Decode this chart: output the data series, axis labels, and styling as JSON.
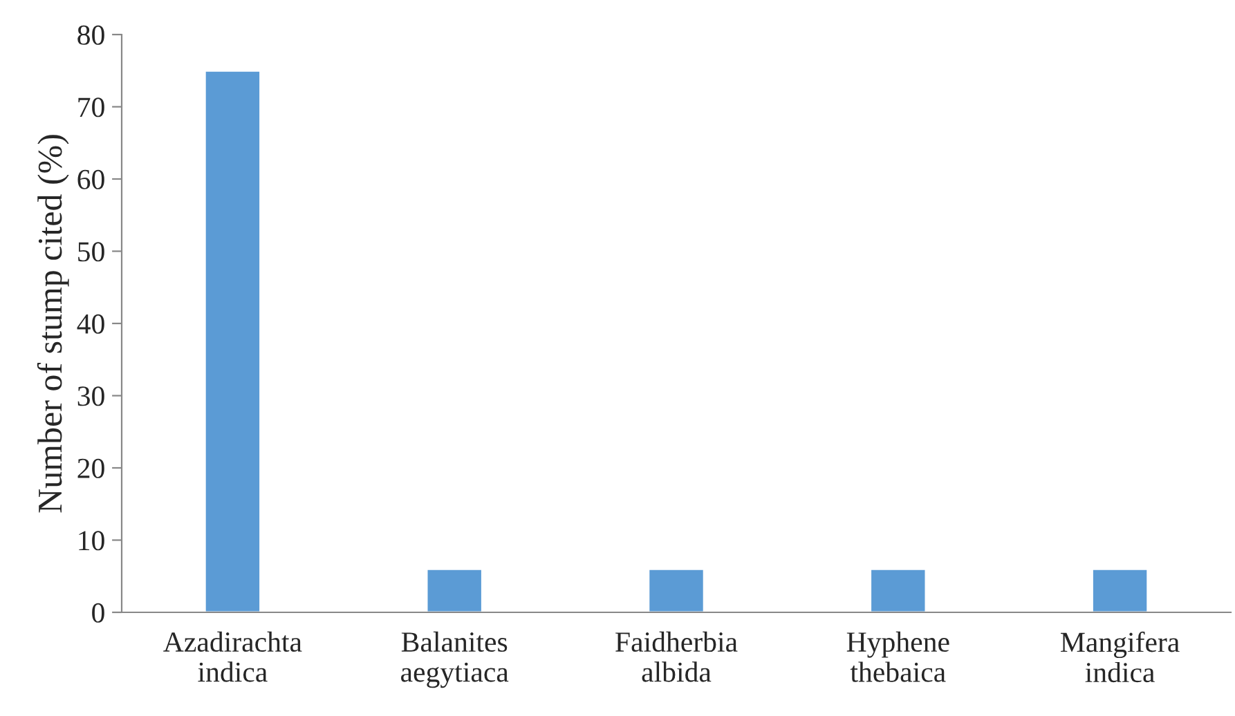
{
  "chart_data": {
    "type": "bar",
    "ylabel": "Number of stump cited (%)",
    "categories": [
      "Azadirachta\nindica",
      "Balanites\naegytiaca",
      "Faidherbia\nalbida",
      "Hyphene\nthebaica",
      "Mangifera\nindica"
    ],
    "values": [
      75,
      6,
      6,
      6,
      6
    ],
    "color": "#5b9bd5",
    "ylim": [
      0,
      80
    ],
    "yticks": [
      0,
      10,
      20,
      30,
      40,
      50,
      60,
      70,
      80
    ],
    "grid": false
  }
}
